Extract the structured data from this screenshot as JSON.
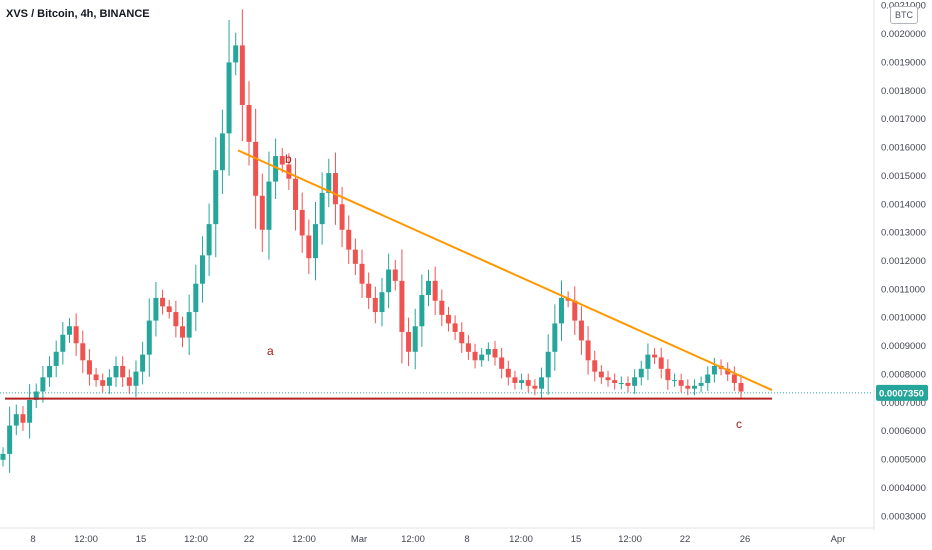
{
  "header": {
    "title": "XVS / Bitcoin, 4h, BINANCE",
    "currency_badge": "BTC"
  },
  "current_price_label": "0.0007350",
  "chart_data": {
    "type": "candlestick",
    "title": "XVS / Bitcoin, 4h, BINANCE",
    "ylim": [
      0.00028,
      0.00212
    ],
    "y_ticks": [
      "0.0003000",
      "0.0004000",
      "0.0005000",
      "0.0006000",
      "0.0007000",
      "0.0008000",
      "0.0009000",
      "0.0010000",
      "0.0011000",
      "0.0012000",
      "0.0013000",
      "0.0014000",
      "0.0015000",
      "0.0016000",
      "0.0017000",
      "0.0018000",
      "0.0019000",
      "0.0020000",
      "0.0021000"
    ],
    "x_ticks": [
      "8",
      "12:00",
      "15",
      "12:00",
      "22",
      "12:00",
      "Mar",
      "12:00",
      "8",
      "12:00",
      "15",
      "12:00",
      "22",
      "26",
      "Apr"
    ],
    "current_price": 0.000735,
    "support_level": 0.000715,
    "trendline": {
      "from": 0.00159,
      "to": 0.000745
    },
    "wave_labels": [
      "a",
      "b",
      "c"
    ],
    "series": [
      {
        "values": [
          0.00052,
          0.00062,
          0.00066,
          0.00063,
          0.00071,
          0.00074,
          0.00079,
          0.00083,
          0.00088,
          0.00094,
          0.00097,
          0.00091,
          0.00085,
          0.0008,
          0.00078,
          0.00076,
          0.00079,
          0.00083,
          0.00079,
          0.00076,
          0.00081,
          0.00087,
          0.00099,
          0.00107,
          0.00104,
          0.00102,
          0.00097,
          0.00093,
          0.00102,
          0.00112,
          0.00122,
          0.00133,
          0.00152,
          0.00165,
          0.0019,
          0.00196,
          0.00175,
          0.00162,
          0.00143,
          0.00131,
          0.00148,
          0.00157,
          0.00154,
          0.00149,
          0.00138,
          0.00129,
          0.00121,
          0.00133,
          0.00144,
          0.00151,
          0.0014,
          0.00131,
          0.00124,
          0.00119,
          0.00112,
          0.00107,
          0.00102,
          0.00109,
          0.00117,
          0.00113,
          0.00095,
          0.00088,
          0.00097,
          0.00108,
          0.00113,
          0.00106,
          0.00101,
          0.00098,
          0.00095,
          0.00091,
          0.00088,
          0.00085,
          0.00087,
          0.00089,
          0.00086,
          0.00082,
          0.00079,
          0.00077,
          0.00078,
          0.00076,
          0.00075,
          0.00079,
          0.00088,
          0.00098,
          0.00107,
          0.00106,
          0.00099,
          0.00092,
          0.00085,
          0.00081,
          0.00079,
          0.00078,
          0.00077,
          0.00077,
          0.00076,
          0.00079,
          0.00082,
          0.00087,
          0.00086,
          0.00082,
          0.00078,
          0.00078,
          0.00076,
          0.00075,
          0.00076,
          0.00077,
          0.0008,
          0.00083,
          0.00082,
          0.0008,
          0.00077,
          0.00074
        ]
      }
    ]
  }
}
